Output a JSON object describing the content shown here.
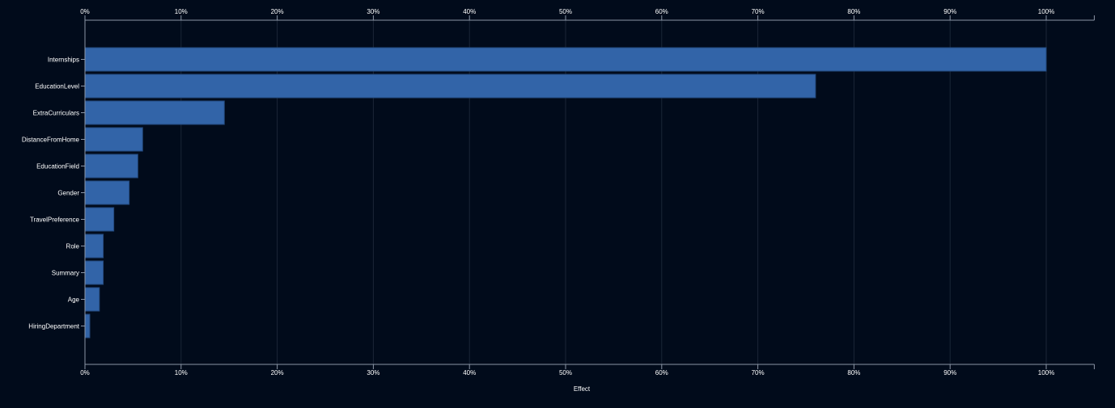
{
  "colors": {
    "background": "#010b1b",
    "bar": "#3264a8",
    "bar_stroke": "#23497d",
    "grid": "#1b2637",
    "axis": "#8c96a6",
    "text": "#ffffff"
  },
  "chart_data": {
    "type": "bar",
    "orientation": "horizontal",
    "categories": [
      "Internships",
      "EducationLevel",
      "ExtraCurriculars",
      "DistanceFromHome",
      "EducationField",
      "Gender",
      "TravelPreference",
      "Role",
      "Summary",
      "Age",
      "HiringDepartment"
    ],
    "values": [
      100,
      76,
      14.5,
      6,
      5.5,
      4.6,
      3,
      1.9,
      1.9,
      1.5,
      0.5
    ],
    "xlabel": "Effect",
    "ylabel": "",
    "title": "",
    "xlim": [
      0,
      105
    ],
    "xticks": [
      0,
      10,
      20,
      30,
      40,
      50,
      60,
      70,
      80,
      90,
      100
    ],
    "xtick_labels": [
      "0%",
      "10%",
      "20%",
      "30%",
      "40%",
      "50%",
      "60%",
      "70%",
      "80%",
      "90%",
      "100%"
    ],
    "tick_axes": "top and bottom",
    "grid": true,
    "legend": "none"
  }
}
